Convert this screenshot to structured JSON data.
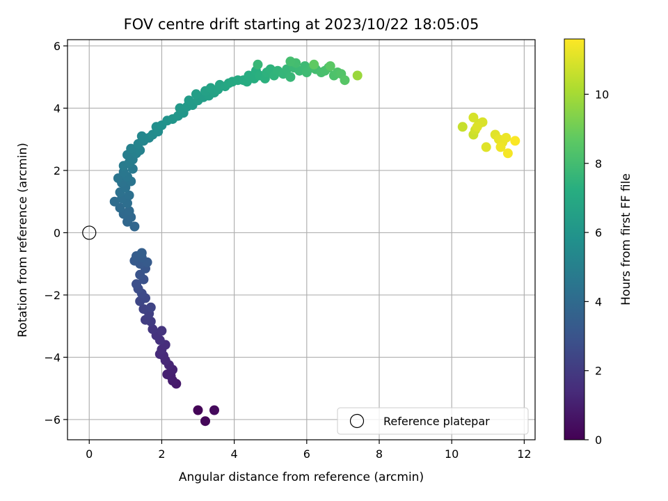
{
  "chart_data": {
    "type": "scatter",
    "title": "FOV centre drift starting at 2023/10/22 18:05:05",
    "xlabel": "Angular distance from reference (arcmin)",
    "ylabel": "Rotation from reference (arcmin)",
    "xlim": [
      -0.6,
      12.3
    ],
    "ylim": [
      -6.65,
      6.2
    ],
    "xticks": [
      0,
      2,
      4,
      6,
      8,
      10,
      12
    ],
    "yticks": [
      -6,
      -4,
      -2,
      0,
      2,
      4,
      6
    ],
    "xtick_labels": [
      "0",
      "2",
      "4",
      "6",
      "8",
      "10",
      "12"
    ],
    "ytick_labels": [
      "−6",
      "−4",
      "−2",
      "0",
      "2",
      "4",
      "6"
    ],
    "grid": true,
    "colormap": "viridis",
    "colorbar": {
      "label": "Hours from first FF file",
      "range": [
        0,
        11.6
      ],
      "ticks": [
        0,
        2,
        4,
        6,
        8,
        10
      ],
      "tick_labels": [
        "0",
        "2",
        "4",
        "6",
        "8",
        "10"
      ]
    },
    "legend": {
      "placement": "lower-right",
      "entries": [
        {
          "label": "Reference platepar",
          "marker": "open-circle"
        }
      ]
    },
    "reference_point": {
      "x": 0,
      "y": 0
    },
    "points": [
      [
        3.0,
        -5.7,
        0.1
      ],
      [
        3.2,
        -6.05,
        0.2
      ],
      [
        3.45,
        -5.7,
        0.3
      ],
      [
        2.4,
        -4.85,
        0.8
      ],
      [
        2.3,
        -4.75,
        0.9
      ],
      [
        2.25,
        -4.6,
        1.0
      ],
      [
        2.15,
        -4.55,
        1.05
      ],
      [
        2.3,
        -4.4,
        1.1
      ],
      [
        2.2,
        -4.25,
        1.2
      ],
      [
        2.1,
        -4.1,
        1.3
      ],
      [
        2.05,
        -3.95,
        1.35
      ],
      [
        1.95,
        -3.9,
        1.4
      ],
      [
        2.0,
        -3.75,
        1.45
      ],
      [
        2.1,
        -3.6,
        1.5
      ],
      [
        1.95,
        -3.45,
        1.6
      ],
      [
        1.85,
        -3.3,
        1.7
      ],
      [
        2.0,
        -3.15,
        1.75
      ],
      [
        1.75,
        -3.1,
        1.8
      ],
      [
        1.7,
        -2.85,
        2.0
      ],
      [
        1.55,
        -2.8,
        2.1
      ],
      [
        1.65,
        -2.6,
        2.2
      ],
      [
        1.5,
        -2.45,
        2.3
      ],
      [
        1.7,
        -2.4,
        2.35
      ],
      [
        1.4,
        -2.2,
        2.45
      ],
      [
        1.55,
        -2.1,
        2.5
      ],
      [
        1.45,
        -1.95,
        2.6
      ],
      [
        1.35,
        -1.8,
        2.7
      ],
      [
        1.3,
        -1.65,
        2.8
      ],
      [
        1.5,
        -1.5,
        2.9
      ],
      [
        1.4,
        -1.35,
        3.0
      ],
      [
        1.55,
        -1.15,
        3.1
      ],
      [
        1.4,
        -1.0,
        3.2
      ],
      [
        1.25,
        -0.9,
        3.25
      ],
      [
        1.6,
        -0.95,
        3.3
      ],
      [
        1.45,
        -0.8,
        3.35
      ],
      [
        1.3,
        -0.75,
        3.4
      ],
      [
        1.45,
        -0.65,
        3.5
      ],
      [
        1.25,
        0.2,
        3.8
      ],
      [
        1.05,
        0.35,
        3.85
      ],
      [
        1.15,
        0.5,
        3.9
      ],
      [
        0.95,
        0.6,
        3.95
      ],
      [
        1.1,
        0.7,
        4.0
      ],
      [
        0.85,
        0.8,
        4.05
      ],
      [
        0.7,
        1.0,
        4.1
      ],
      [
        1.05,
        0.95,
        4.15
      ],
      [
        0.9,
        1.1,
        4.2
      ],
      [
        1.1,
        1.2,
        4.25
      ],
      [
        0.85,
        1.3,
        4.3
      ],
      [
        1.0,
        1.45,
        4.35
      ],
      [
        0.9,
        1.6,
        4.4
      ],
      [
        1.15,
        1.65,
        4.45
      ],
      [
        0.8,
        1.75,
        4.5
      ],
      [
        1.05,
        1.8,
        4.55
      ],
      [
        0.95,
        1.95,
        4.6
      ],
      [
        1.2,
        2.05,
        4.7
      ],
      [
        0.95,
        2.15,
        4.75
      ],
      [
        1.1,
        2.25,
        4.8
      ],
      [
        1.2,
        2.35,
        4.85
      ],
      [
        1.05,
        2.5,
        4.9
      ],
      [
        1.3,
        2.55,
        5.0
      ],
      [
        1.15,
        2.7,
        5.05
      ],
      [
        1.4,
        2.65,
        5.1
      ],
      [
        1.35,
        2.85,
        5.2
      ],
      [
        1.5,
        2.95,
        5.3
      ],
      [
        1.45,
        3.1,
        5.35
      ],
      [
        1.65,
        3.05,
        5.4
      ],
      [
        1.75,
        3.15,
        5.5
      ],
      [
        1.9,
        3.25,
        5.6
      ],
      [
        1.85,
        3.4,
        5.7
      ],
      [
        2.0,
        3.45,
        5.8
      ],
      [
        2.15,
        3.6,
        5.9
      ],
      [
        2.3,
        3.65,
        6.0
      ],
      [
        2.45,
        3.75,
        6.05
      ],
      [
        2.6,
        3.85,
        6.1
      ],
      [
        2.5,
        4.0,
        6.15
      ],
      [
        2.7,
        4.05,
        6.2
      ],
      [
        2.85,
        4.1,
        6.25
      ],
      [
        2.75,
        4.25,
        6.3
      ],
      [
        3.0,
        4.25,
        6.35
      ],
      [
        3.15,
        4.35,
        6.4
      ],
      [
        2.95,
        4.45,
        6.45
      ],
      [
        3.3,
        4.4,
        6.5
      ],
      [
        3.2,
        4.55,
        6.55
      ],
      [
        3.45,
        4.5,
        6.6
      ],
      [
        3.35,
        4.65,
        6.65
      ],
      [
        3.55,
        4.6,
        6.7
      ],
      [
        3.6,
        4.75,
        6.75
      ],
      [
        3.75,
        4.7,
        6.8
      ],
      [
        3.85,
        4.8,
        6.9
      ],
      [
        3.95,
        4.85,
        6.95
      ],
      [
        4.1,
        4.9,
        7.0
      ],
      [
        4.25,
        4.9,
        7.05
      ],
      [
        4.35,
        4.85,
        7.1
      ],
      [
        4.4,
        5.05,
        7.15
      ],
      [
        4.55,
        4.95,
        7.2
      ],
      [
        4.6,
        5.2,
        7.25
      ],
      [
        4.7,
        5.05,
        7.3
      ],
      [
        4.85,
        4.95,
        7.35
      ],
      [
        4.9,
        5.15,
        7.4
      ],
      [
        5.0,
        5.25,
        7.45
      ],
      [
        5.1,
        5.05,
        7.5
      ],
      [
        5.2,
        5.2,
        7.55
      ],
      [
        5.35,
        5.1,
        7.6
      ],
      [
        5.45,
        5.25,
        7.65
      ],
      [
        5.55,
        5.0,
        7.7
      ],
      [
        4.65,
        5.4,
        7.7
      ],
      [
        5.65,
        5.3,
        7.75
      ],
      [
        5.8,
        5.2,
        7.8
      ],
      [
        5.95,
        5.35,
        7.85
      ],
      [
        6.0,
        5.15,
        7.9
      ],
      [
        6.15,
        5.3,
        7.95
      ],
      [
        6.25,
        5.25,
        8.0
      ],
      [
        5.7,
        5.45,
        8.0
      ],
      [
        5.55,
        5.5,
        8.05
      ],
      [
        6.4,
        5.15,
        8.1
      ],
      [
        6.5,
        5.2,
        8.15
      ],
      [
        6.6,
        5.3,
        8.2
      ],
      [
        6.75,
        5.05,
        8.25
      ],
      [
        6.85,
        5.15,
        8.3
      ],
      [
        6.95,
        5.1,
        8.4
      ],
      [
        7.05,
        4.9,
        8.5
      ],
      [
        6.65,
        5.35,
        8.6
      ],
      [
        6.2,
        5.4,
        8.7
      ],
      [
        7.4,
        5.05,
        9.8
      ],
      [
        10.3,
        3.4,
        10.6
      ],
      [
        10.6,
        3.15,
        10.7
      ],
      [
        10.65,
        3.3,
        10.8
      ],
      [
        10.75,
        3.5,
        10.85
      ],
      [
        10.6,
        3.7,
        10.9
      ],
      [
        10.85,
        3.55,
        10.95
      ],
      [
        10.7,
        3.4,
        11.0
      ],
      [
        10.95,
        2.75,
        11.05
      ],
      [
        11.2,
        3.15,
        11.1
      ],
      [
        11.3,
        3.0,
        11.2
      ],
      [
        11.4,
        2.9,
        11.25
      ],
      [
        11.5,
        3.05,
        11.3
      ],
      [
        11.35,
        2.75,
        11.35
      ],
      [
        11.55,
        2.55,
        11.45
      ],
      [
        11.75,
        2.95,
        11.55
      ]
    ]
  }
}
